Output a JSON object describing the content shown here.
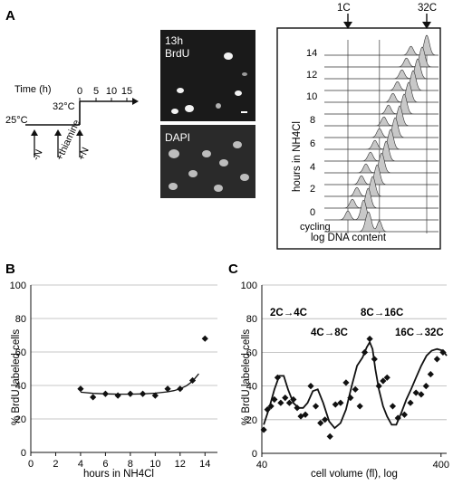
{
  "panel_labels": {
    "a": "A",
    "b": "B",
    "c": "C"
  },
  "timeline": {
    "time_label": "Time (h)",
    "temp_low": "25°C",
    "temp_high": "32°C",
    "ticks": [
      "0",
      "5",
      "10",
      "15"
    ],
    "events": [
      "-N",
      "+thiamine",
      "+N"
    ]
  },
  "micrographs": [
    {
      "label_lines": [
        "13h",
        "BrdU"
      ]
    },
    {
      "label_lines": [
        "DAPI"
      ]
    }
  ],
  "colors": {
    "histogram_fill": "#c8c8c8",
    "panel_bg": "#ffffff",
    "micrograph_bg": "#1a1a1a"
  },
  "chart_data": [
    {
      "id": "A-histograms",
      "type": "area",
      "ylabel": "hours in NH4Cl",
      "xlabel": "log DNA content",
      "row_labels": [
        "14",
        "12",
        "10",
        "8",
        "6",
        "4",
        "2",
        "0",
        "cycling"
      ],
      "rows_hours": [
        14,
        13,
        12,
        11,
        10,
        9,
        8,
        7,
        6,
        5,
        4,
        3,
        2,
        1,
        0,
        -1
      ],
      "markers": [
        {
          "label": "1C",
          "x": 1
        },
        {
          "label": "32C",
          "x": 32
        }
      ],
      "gridlines_ploidy": [
        1,
        4,
        32
      ]
    },
    {
      "id": "B",
      "type": "scatter",
      "xlabel": "hours in NH4Cl",
      "ylabel": "% BrdU labeled cells",
      "xlim": [
        0,
        15
      ],
      "ylim": [
        0,
        100
      ],
      "xticks": [
        0,
        2,
        4,
        6,
        8,
        10,
        12,
        14
      ],
      "yticks": [
        0,
        20,
        40,
        60,
        80,
        100
      ],
      "grid": true,
      "x": [
        4,
        5,
        6,
        7,
        8,
        9,
        10,
        11,
        12,
        13,
        14
      ],
      "y": [
        38,
        33,
        35,
        34,
        35,
        35,
        34,
        38,
        38,
        43,
        68
      ],
      "fit": {
        "x": [
          4,
          5,
          6,
          7,
          8,
          9,
          10,
          11,
          11.5,
          12,
          12.5,
          13,
          13.5
        ],
        "y": [
          36,
          35.3,
          35,
          34.8,
          34.8,
          35,
          35.4,
          36.2,
          36.9,
          38,
          39.8,
          42.5,
          47
        ]
      }
    },
    {
      "id": "C",
      "type": "scatter",
      "xlabel": "cell volume (fl), log",
      "ylabel": "% BrdU labeled cells",
      "xscale": "log",
      "xlim": [
        40,
        430
      ],
      "ylim": [
        0,
        100
      ],
      "xticks": [
        40,
        400
      ],
      "yticks": [
        0,
        20,
        40,
        60,
        80,
        100
      ],
      "grid": true,
      "annotations": [
        {
          "text": "2C→4C"
        },
        {
          "text": "4C→8C"
        },
        {
          "text": "8C→16C"
        },
        {
          "text": "16C→32C"
        }
      ],
      "x": [
        41,
        43,
        45,
        47,
        49,
        51,
        54,
        57,
        60,
        63,
        66,
        70,
        75,
        80,
        85,
        90,
        96,
        103,
        110,
        118,
        125,
        133,
        141,
        150,
        160,
        170,
        180,
        190,
        200,
        215,
        230,
        250,
        270,
        290,
        310,
        330,
        350,
        380,
        410
      ],
      "y": [
        14,
        26,
        28,
        32,
        45,
        30,
        33,
        30,
        32,
        27,
        22,
        23,
        40,
        28,
        18,
        20,
        10,
        29,
        30,
        42,
        33,
        38,
        28,
        60,
        68,
        56,
        40,
        43,
        45,
        28,
        21,
        23,
        30,
        36,
        35,
        40,
        47,
        56,
        60
      ],
      "fit": {
        "x": [
          41,
          44,
          47,
          50,
          53,
          56,
          60,
          64,
          68,
          72,
          77,
          82,
          88,
          95,
          102,
          110,
          118,
          127,
          136,
          146,
          154,
          160,
          166,
          172,
          180,
          190,
          200,
          212,
          225,
          240,
          256,
          272,
          290,
          310,
          332,
          355,
          380,
          410,
          430
        ],
        "y": [
          17,
          27,
          38,
          46,
          46,
          38,
          30,
          27,
          27,
          30,
          37,
          38,
          30,
          19,
          15,
          18,
          26,
          40,
          52,
          57,
          63,
          66,
          62,
          50,
          38,
          28,
          22,
          17,
          17,
          24,
          32,
          38,
          45,
          52,
          58,
          61,
          62,
          61,
          58
        ]
      }
    }
  ]
}
